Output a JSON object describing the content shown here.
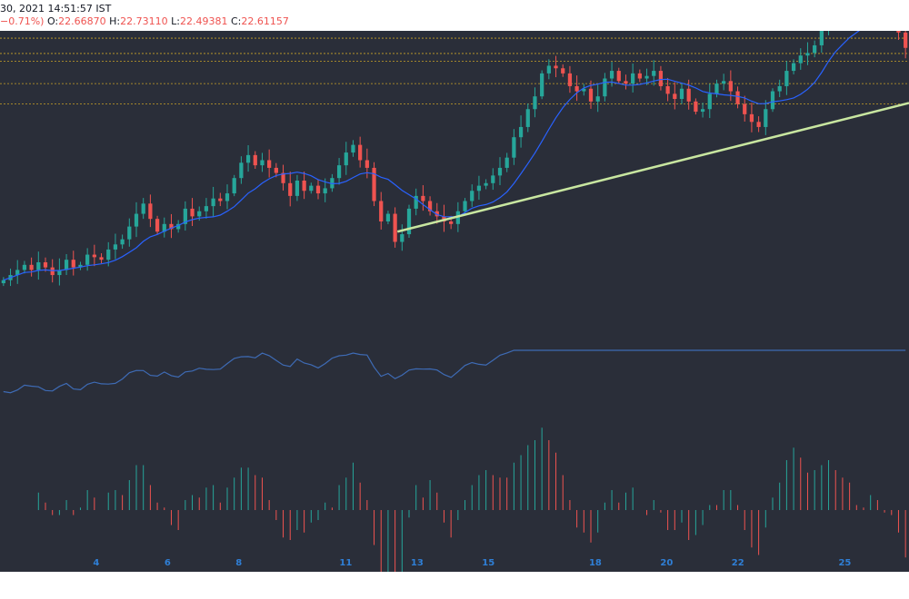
{
  "header": {
    "datetime": "30, 2021 14:51:57 IST",
    "change": "−0.71%)",
    "o_label": "O:",
    "o_value": "22.66870",
    "h_label": "H:",
    "h_value": "22.73110",
    "l_label": "L:",
    "l_value": "22.49381",
    "c_label": "C:",
    "c_value": "22.61157"
  },
  "colors": {
    "background": "#2a2e39",
    "up": "#26a69a",
    "down": "#ef5350",
    "ma_line": "#2962ff",
    "indicator_line": "#3e6bb5",
    "trendline": "#c8e6a0",
    "level_line": "#c9a227",
    "axis_label": "#2f7fd6"
  },
  "chart_data": [
    {
      "type": "candlestick",
      "x_ticks": [
        "4",
        "6",
        "8",
        "11",
        "13",
        "15",
        "18",
        "20",
        "22",
        "25"
      ],
      "x_tick_pos": [
        4,
        6,
        8,
        11,
        13,
        15,
        18,
        20,
        22,
        25
      ],
      "x_range": [
        1.3,
        26.8
      ],
      "y_range": [
        18.4,
        23.2
      ],
      "close": [
        18.85,
        18.95,
        19.05,
        19.15,
        19.05,
        19.2,
        19.1,
        18.95,
        19.05,
        19.25,
        19.1,
        19.15,
        19.35,
        19.3,
        19.25,
        19.45,
        19.55,
        19.65,
        19.9,
        20.15,
        20.35,
        20.05,
        19.8,
        19.95,
        19.85,
        19.95,
        20.25,
        20.1,
        20.2,
        20.3,
        20.45,
        20.4,
        20.55,
        20.85,
        21.15,
        21.3,
        21.1,
        21.2,
        21.05,
        20.95,
        20.75,
        20.5,
        20.8,
        20.6,
        20.7,
        20.55,
        20.65,
        20.85,
        21.1,
        21.35,
        21.5,
        21.2,
        21.05,
        20.4,
        20.0,
        20.15,
        19.6,
        19.75,
        20.25,
        20.5,
        20.4,
        20.2,
        20.1,
        20.0,
        19.95,
        20.2,
        20.4,
        20.6,
        20.7,
        20.75,
        20.9,
        21.05,
        21.25,
        21.65,
        21.85,
        22.2,
        22.45,
        22.9,
        23.05,
        23.0,
        22.9,
        22.65,
        22.55,
        22.6,
        22.35,
        22.45,
        22.8,
        22.95,
        22.75,
        22.7,
        22.9,
        22.8,
        22.85,
        22.95,
        22.65,
        22.5,
        22.4,
        22.6,
        22.35,
        22.15,
        22.2,
        22.5,
        22.7,
        22.75,
        22.55,
        22.3,
        22.1,
        21.95,
        21.85,
        22.2,
        22.55,
        22.65,
        22.95,
        23.1,
        23.25,
        23.3,
        23.45,
        23.85,
        24.1,
        24.05,
        23.95,
        24.0,
        23.95,
        24.15,
        24.35,
        24.15,
        23.95,
        23.85,
        23.7,
        23.4
      ],
      "open_note": "open = previous close"
    },
    {
      "type": "line",
      "name": "",
      "description": "secondary oscillator line (no values printed)"
    },
    {
      "type": "histogram",
      "name": "",
      "description": "momentum histogram (no values printed)"
    }
  ],
  "levels": [
    23.59,
    23.29,
    23.14,
    22.7,
    22.3
  ],
  "trendline": {
    "from": {
      "x": 12.45,
      "y": 19.8
    },
    "to": {
      "x": 26.8,
      "y": 22.32
    }
  }
}
